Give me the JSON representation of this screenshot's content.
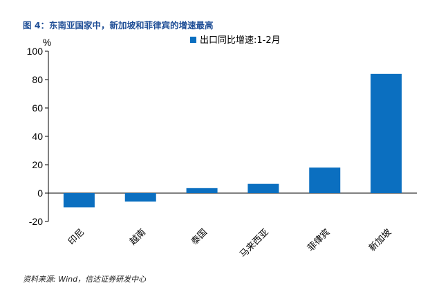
{
  "header": {
    "title": "图 4：东南亚国家中，新加坡和菲律宾的增速最高"
  },
  "footer": {
    "source": "资料来源: Wind，信达证券研发中心"
  },
  "chart_data": {
    "type": "bar",
    "title": "",
    "xlabel": "",
    "ylabel": "%",
    "ylim": [
      -20,
      100
    ],
    "yticks": [
      -20,
      0,
      20,
      40,
      60,
      80,
      100
    ],
    "grid": false,
    "legend": "top-right",
    "categories": [
      "印尼",
      "越南",
      "泰国",
      "马来西亚",
      "菲律宾",
      "新加坡"
    ],
    "series": [
      {
        "name": "出口同比增速:1-2月",
        "color": "#0b6fc0",
        "values": [
          -10,
          -6,
          3.5,
          6.5,
          18,
          84
        ]
      }
    ]
  }
}
